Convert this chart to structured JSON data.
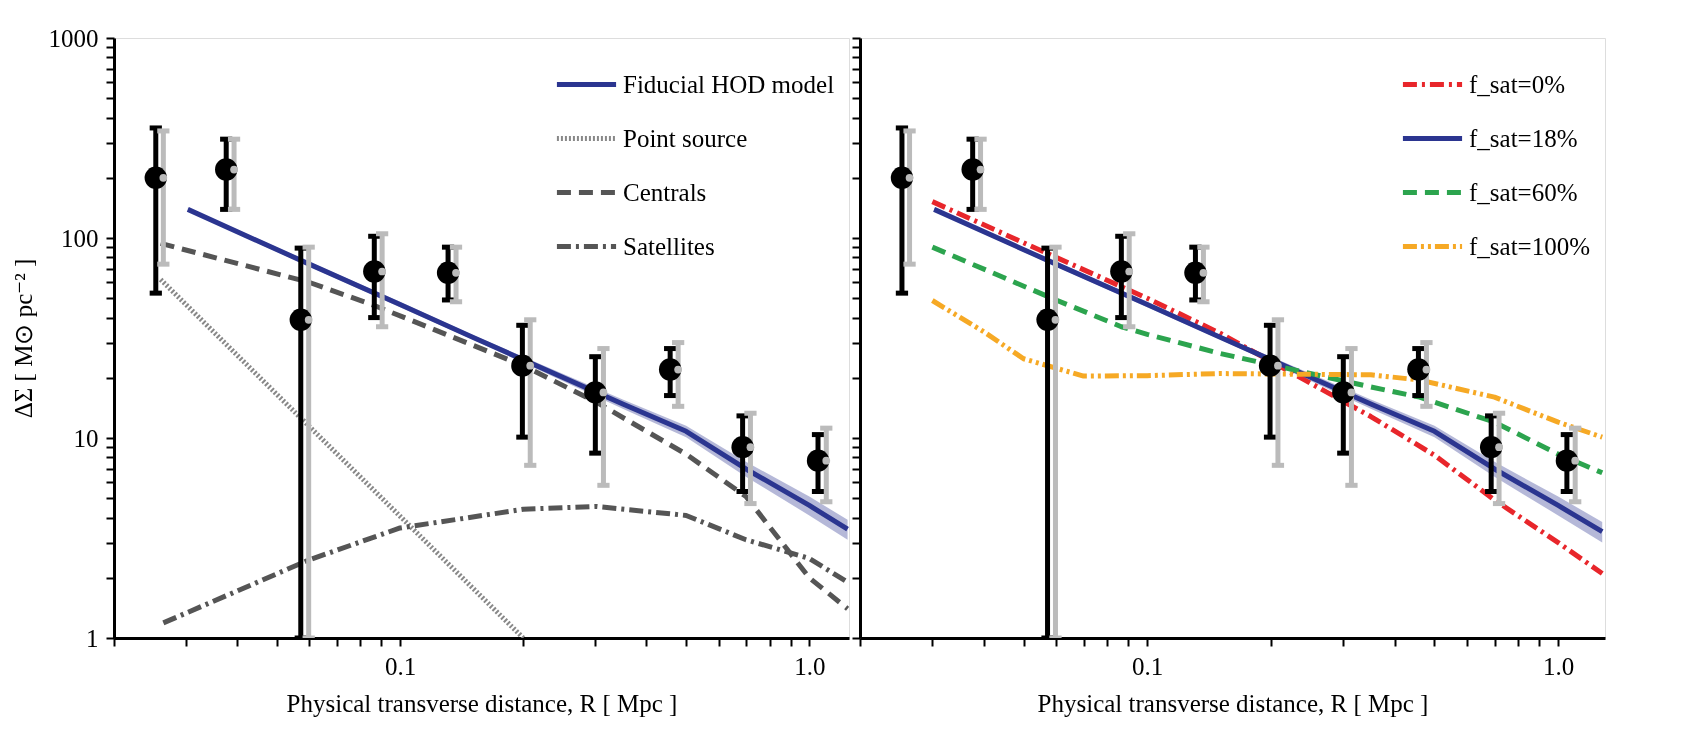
{
  "chart_data": [
    {
      "type": "line",
      "log": "xy",
      "grid": false,
      "legend": "top right",
      "ylabel": "ΔΣ   [ M⊙ pc⁻² ]",
      "xlabel": "Physical transverse distance,   R [ Mpc ]",
      "xlim": [
        0.02,
        1.25
      ],
      "ylim": [
        1,
        1000
      ],
      "xticks": [
        {
          "value": 0.02,
          "label": null
        },
        {
          "value": 0.03,
          "label": null
        },
        {
          "value": 0.04,
          "label": null
        },
        {
          "value": 0.05,
          "label": null
        },
        {
          "value": 0.06,
          "label": null
        },
        {
          "value": 0.07,
          "label": null
        },
        {
          "value": 0.08,
          "label": null
        },
        {
          "value": 0.09,
          "label": null
        },
        0.1,
        {
          "value": 0.2,
          "label": null
        },
        {
          "value": 0.3,
          "label": null
        },
        {
          "value": 0.4,
          "label": null
        },
        {
          "value": 0.5,
          "label": null
        },
        {
          "value": 0.6,
          "label": null
        },
        {
          "value": 0.7,
          "label": null
        },
        {
          "value": 0.8,
          "label": null
        },
        {
          "value": 0.9,
          "label": null
        },
        {
          "value": 1,
          "label": "1.0"
        }
      ],
      "yticks": [
        1,
        {
          "value": 2,
          "label": null
        },
        {
          "value": 3,
          "label": null
        },
        {
          "value": 4,
          "label": null
        },
        {
          "value": 5,
          "label": null
        },
        {
          "value": 6,
          "label": null
        },
        {
          "value": 7,
          "label": null
        },
        {
          "value": 8,
          "label": null
        },
        {
          "value": 9,
          "label": null
        },
        10,
        {
          "value": 20,
          "label": null
        },
        {
          "value": 30,
          "label": null
        },
        {
          "value": 40,
          "label": null
        },
        {
          "value": 50,
          "label": null
        },
        {
          "value": 60,
          "label": null
        },
        {
          "value": 70,
          "label": null
        },
        {
          "value": 80,
          "label": null
        },
        {
          "value": 90,
          "label": null
        },
        100,
        {
          "value": 200,
          "label": null
        },
        {
          "value": 300,
          "label": null
        },
        {
          "value": 400,
          "label": null
        },
        {
          "value": 500,
          "label": null
        },
        {
          "value": 600,
          "label": null
        },
        {
          "value": 700,
          "label": null
        },
        {
          "value": 800,
          "label": null
        },
        {
          "value": 900,
          "label": null
        },
        1000
      ],
      "series": [
        {
          "name": "Fiducial HOD model",
          "type": "line",
          "color": "#2b3590",
          "line_style": "solid",
          "x": [
            0.0303,
            0.06,
            0.1,
            0.15,
            0.35,
            0.5,
            0.7,
            1.0,
            1.24
          ],
          "values": [
            139,
            74,
            46.5,
            32,
            14.8,
            10.8,
            7.0,
            4.6,
            3.5
          ],
          "lower": [
            136,
            72,
            45,
            31.2,
            14.0,
            10.1,
            6.4,
            4.1,
            3.1
          ],
          "upper": [
            142,
            76,
            48,
            32.8,
            15.6,
            11.5,
            7.6,
            5.1,
            3.9
          ]
        },
        {
          "name": "Point source",
          "type": "line",
          "color": "#888888",
          "line_style": "dotted",
          "x": [
            0.026,
            0.2
          ],
          "values": [
            62,
            1
          ]
        },
        {
          "name": "Centrals",
          "type": "line",
          "color": "#555555",
          "line_style": "dashed",
          "x": [
            0.026,
            0.06,
            0.0865,
            0.2,
            0.3,
            0.5,
            0.7,
            1.0,
            1.24
          ],
          "values": [
            94,
            60,
            46,
            23,
            15.2,
            8.3,
            5.1,
            2.0,
            1.4
          ]
        },
        {
          "name": "Satellites",
          "type": "line",
          "color": "#555555",
          "line_style": "dashdot",
          "x": [
            0.0264,
            0.06,
            0.1,
            0.2,
            0.3,
            0.5,
            0.7,
            1.0,
            1.24
          ],
          "values": [
            1.19,
            2.46,
            3.55,
            4.4,
            4.55,
            4.1,
            3.1,
            2.5,
            1.9
          ]
        },
        {
          "type": "scatter",
          "color": "#000000",
          "marker": "circle",
          "x": [
            0.0253,
            0.0376,
            0.0572,
            0.0865,
            0.131,
            0.199,
            0.3,
            0.457,
            0.687,
            1.05
          ],
          "values": [
            200,
            220,
            39,
            68,
            67,
            23,
            16.9,
            22,
            9.0,
            7.7
          ],
          "errors": [
            [
              53,
              355
            ],
            [
              139,
              312
            ],
            [
              1,
              89
            ],
            [
              40,
              102
            ],
            [
              49,
              90
            ],
            [
              10.1,
              36.6
            ],
            [
              8.4,
              25.5
            ],
            [
              16.3,
              28
            ],
            [
              5.4,
              12.9
            ],
            [
              5.4,
              10.4
            ]
          ]
        },
        {
          "type": "scatter",
          "color": "#bbbbbb",
          "marker": "circle",
          "x": [
            0.0264,
            0.0393,
            0.0598,
            0.0904,
            0.137,
            0.208,
            0.314,
            0.478,
            0.718,
            1.1
          ],
          "values": [
            200,
            220,
            39,
            68,
            67,
            23,
            16.9,
            22,
            9.0,
            7.7
          ],
          "errors": [
            [
              74,
              343
            ],
            [
              139,
              312
            ],
            [
              1,
              90
            ],
            [
              36,
              105
            ],
            [
              48,
              90
            ],
            [
              7.3,
              39
            ],
            [
              5.8,
              28
            ],
            [
              14.4,
              30
            ],
            [
              4.7,
              13.3
            ],
            [
              4.8,
              11.2
            ]
          ]
        }
      ]
    },
    {
      "type": "line",
      "log": "xy",
      "grid": false,
      "legend": "top right",
      "tick_labels": "x",
      "xlabel": "Physical transverse distance,   R [ Mpc ]",
      "xlim": [
        0.02,
        1.3
      ],
      "ylim": [
        1,
        1000
      ],
      "xticks": [
        {
          "value": 0.02,
          "label": null
        },
        {
          "value": 0.03,
          "label": null
        },
        {
          "value": 0.04,
          "label": null
        },
        {
          "value": 0.05,
          "label": null
        },
        {
          "value": 0.06,
          "label": null
        },
        {
          "value": 0.07,
          "label": null
        },
        {
          "value": 0.08,
          "label": null
        },
        {
          "value": 0.09,
          "label": null
        },
        0.1,
        {
          "value": 0.2,
          "label": null
        },
        {
          "value": 0.3,
          "label": null
        },
        {
          "value": 0.4,
          "label": null
        },
        {
          "value": 0.5,
          "label": null
        },
        {
          "value": 0.6,
          "label": null
        },
        {
          "value": 0.7,
          "label": null
        },
        {
          "value": 0.8,
          "label": null
        },
        {
          "value": 0.9,
          "label": null
        },
        {
          "value": 1,
          "label": "1.0"
        }
      ],
      "yticks": [
        {
          "value": 1,
          "label": null
        },
        {
          "value": 2,
          "label": null
        },
        {
          "value": 3,
          "label": null
        },
        {
          "value": 4,
          "label": null
        },
        {
          "value": 5,
          "label": null
        },
        {
          "value": 6,
          "label": null
        },
        {
          "value": 7,
          "label": null
        },
        {
          "value": 8,
          "label": null
        },
        {
          "value": 9,
          "label": null
        },
        {
          "value": 10,
          "label": null
        },
        {
          "value": 20,
          "label": null
        },
        {
          "value": 30,
          "label": null
        },
        {
          "value": 40,
          "label": null
        },
        {
          "value": 50,
          "label": null
        },
        {
          "value": 60,
          "label": null
        },
        {
          "value": 70,
          "label": null
        },
        {
          "value": 80,
          "label": null
        },
        {
          "value": 90,
          "label": null
        },
        {
          "value": 100,
          "label": null
        },
        {
          "value": 200,
          "label": null
        },
        {
          "value": 300,
          "label": null
        },
        {
          "value": 400,
          "label": null
        },
        {
          "value": 500,
          "label": null
        },
        {
          "value": 600,
          "label": null
        },
        {
          "value": 700,
          "label": null
        },
        {
          "value": 800,
          "label": null
        },
        {
          "value": 900,
          "label": null
        },
        {
          "value": 1000,
          "label": null
        }
      ],
      "series": [
        {
          "name": "f_sat=0%",
          "type": "line",
          "color": "#e8262b",
          "line_style": "dashdot",
          "x": [
            0.03,
            0.06,
            0.1,
            0.15,
            0.35,
            0.5,
            0.7,
            1.0,
            1.28
          ],
          "values": [
            152,
            80,
            50,
            33.5,
            12.8,
            8.2,
            4.9,
            3.0,
            2.1
          ]
        },
        {
          "name": "f_sat=18%",
          "type": "line",
          "color": "#2b3590",
          "line_style": "solid",
          "x": [
            0.0303,
            0.06,
            0.1,
            0.15,
            0.35,
            0.5,
            0.7,
            1.0,
            1.28
          ],
          "values": [
            139,
            74,
            46.5,
            32,
            14.8,
            10.8,
            7.0,
            4.6,
            3.4
          ],
          "lower": [
            136,
            72,
            45,
            31.2,
            14.0,
            10.1,
            6.4,
            4.1,
            3.0
          ],
          "upper": [
            142,
            76,
            48,
            32.8,
            15.6,
            11.5,
            7.6,
            5.1,
            3.8
          ]
        },
        {
          "name": "f_sat=60%",
          "type": "line",
          "color": "#2ca44e",
          "line_style": "dashed",
          "x": [
            0.03,
            0.06,
            0.0865,
            0.1,
            0.15,
            0.35,
            0.46,
            0.7,
            1.0,
            1.28
          ],
          "values": [
            90,
            49,
            36,
            33,
            26.5,
            18,
            16,
            12,
            8.3,
            6.7
          ]
        },
        {
          "name": "f_sat=100%",
          "type": "line",
          "color": "#f6a925",
          "line_style": "dashdotdot",
          "x": [
            0.03,
            0.04,
            0.05,
            0.07,
            0.1,
            0.15,
            0.35,
            0.46,
            0.7,
            1.0,
            1.28
          ],
          "values": [
            48.7,
            34,
            24.9,
            20.4,
            20.5,
            21,
            20.7,
            19.5,
            16,
            12,
            10.1
          ]
        },
        {
          "type": "scatter",
          "color": "#000000",
          "marker": "circle",
          "x": [
            0.0253,
            0.0376,
            0.0572,
            0.0865,
            0.131,
            0.199,
            0.3,
            0.457,
            0.687,
            1.05
          ],
          "values": [
            200,
            220,
            39,
            68,
            67,
            23,
            16.9,
            22,
            9.0,
            7.7
          ],
          "errors": [
            [
              53,
              355
            ],
            [
              139,
              312
            ],
            [
              1,
              89
            ],
            [
              40,
              102
            ],
            [
              49,
              90
            ],
            [
              10.1,
              36.6
            ],
            [
              8.4,
              25.5
            ],
            [
              16.3,
              28
            ],
            [
              5.4,
              12.9
            ],
            [
              5.4,
              10.4
            ]
          ]
        },
        {
          "type": "scatter",
          "color": "#bbbbbb",
          "marker": "circle",
          "x": [
            0.0264,
            0.0393,
            0.0598,
            0.0904,
            0.137,
            0.208,
            0.314,
            0.478,
            0.718,
            1.1
          ],
          "values": [
            200,
            220,
            39,
            68,
            67,
            23,
            16.9,
            22,
            9.0,
            7.7
          ],
          "errors": [
            [
              74,
              343
            ],
            [
              139,
              312
            ],
            [
              1,
              90
            ],
            [
              36,
              105
            ],
            [
              48,
              90
            ],
            [
              7.3,
              39
            ],
            [
              5.8,
              28
            ],
            [
              14.4,
              30
            ],
            [
              4.7,
              13.3
            ],
            [
              4.8,
              11.2
            ]
          ]
        }
      ]
    }
  ]
}
